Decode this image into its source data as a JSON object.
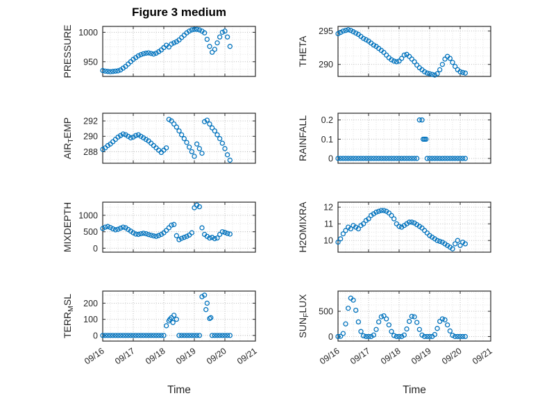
{
  "figure_title": "Figure 3 medium",
  "chart_data": {
    "type": "scatter",
    "title": "Figure 3 medium",
    "xlabel": "Time",
    "marker": "o",
    "marker_color": "#0072BD",
    "axis_color": "#262626",
    "grid_color": "#b0b0b0",
    "minor_grid_color": "#d9d9d9",
    "grid": "on",
    "minor_grid": "on",
    "x_unit": "days_since_09/16",
    "xlim_days": [
      0,
      5
    ],
    "xticks": [
      0,
      1,
      2,
      3,
      4,
      5
    ],
    "xtick_labels": [
      "09/16",
      "09/17",
      "09/18",
      "09/19",
      "09/20",
      "09/21"
    ],
    "xminor_step": 0.25,
    "x_days": [
      0,
      0.083,
      0.167,
      0.25,
      0.333,
      0.417,
      0.5,
      0.583,
      0.667,
      0.75,
      0.833,
      0.917,
      1,
      1.083,
      1.167,
      1.25,
      1.333,
      1.417,
      1.5,
      1.583,
      1.667,
      1.75,
      1.833,
      1.917,
      2,
      2.083,
      2.167,
      2.25,
      2.333,
      2.417,
      2.5,
      2.583,
      2.667,
      2.75,
      2.833,
      2.917,
      3,
      3.083,
      3.167,
      3.25,
      3.333,
      3.417,
      3.5,
      3.583,
      3.667,
      3.75,
      3.833,
      3.917,
      4,
      4.083,
      4.167
    ],
    "subplots": [
      {
        "name": "pressure",
        "label": "PRESSURE",
        "ylabel_parts": [
          {
            "t": "PRESSURE"
          }
        ],
        "yticks": [
          950,
          1000
        ],
        "ytick_labels": [
          "950",
          "1000"
        ],
        "ylim": [
          925,
          1010
        ],
        "yminor": [
          937.5,
          962.5,
          975,
          987.5
        ],
        "y": [
          935,
          934,
          933.5,
          933,
          933.5,
          934,
          934.5,
          936,
          939,
          942,
          946,
          950,
          954,
          957,
          960,
          962,
          963.5,
          964.5,
          965,
          964,
          963,
          964.5,
          967,
          970,
          974,
          978,
          975,
          980,
          982,
          984,
          987,
          991,
          995,
          999,
          1002,
          1004,
          1005,
          1005,
          1004,
          1002,
          999,
          988,
          976,
          966,
          971,
          982,
          992,
          1000,
          1002,
          992,
          976
        ]
      },
      {
        "name": "theta",
        "label": "THETA",
        "ylabel_parts": [
          {
            "t": "THETA"
          }
        ],
        "yticks": [
          290,
          295
        ],
        "ytick_labels": [
          "290",
          "295"
        ],
        "ylim": [
          288.2,
          295.7
        ],
        "yminor": [
          288.75,
          291.25,
          292.5,
          293.75
        ],
        "y": [
          294.6,
          294.8,
          295,
          295.1,
          295.2,
          295.1,
          294.9,
          294.7,
          294.5,
          294.2,
          293.9,
          293.7,
          293.5,
          293.2,
          292.9,
          292.7,
          292.4,
          292.1,
          291.8,
          291.4,
          291,
          290.7,
          290.5,
          290.4,
          290.5,
          290.9,
          291.4,
          291.5,
          291.2,
          290.8,
          290.4,
          289.9,
          289.5,
          289.2,
          288.9,
          288.7,
          288.6,
          288.5,
          288.4,
          288.6,
          289.2,
          290,
          290.8,
          291.2,
          290.9,
          290.3,
          289.7,
          289.2,
          288.9,
          288.8,
          288.7
        ]
      },
      {
        "name": "air_temp",
        "label": "AIR_TEMP",
        "ylabel_parts": [
          {
            "t": "AIR"
          },
          {
            "t": "T",
            "sub": true
          },
          {
            "t": "EMP"
          }
        ],
        "yticks": [
          288,
          290,
          292
        ],
        "ytick_labels": [
          "288",
          "290",
          "292"
        ],
        "ylim": [
          286.5,
          293
        ],
        "yminor": [
          287,
          289,
          291
        ],
        "y": [
          288.3,
          288.5,
          288.8,
          289,
          289.3,
          289.6,
          289.9,
          290.1,
          290.3,
          290.2,
          290,
          289.8,
          289.9,
          290.1,
          290.2,
          290,
          289.8,
          289.6,
          289.4,
          289.1,
          288.8,
          288.5,
          288.2,
          287.9,
          288.2,
          288.5,
          292.2,
          292,
          291.6,
          291.2,
          290.7,
          290.2,
          289.7,
          289.2,
          288.6,
          288,
          287.4,
          289,
          288.4,
          287.8,
          291.9,
          292.1,
          291.6,
          291.1,
          290.7,
          290.2,
          289.7,
          289.1,
          288.4,
          287.6,
          286.9
        ]
      },
      {
        "name": "rainfall",
        "label": "RAINFALL",
        "ylabel_parts": [
          {
            "t": "RAINFALL"
          }
        ],
        "yticks": [
          0,
          0.1,
          0.2
        ],
        "ytick_labels": [
          "0",
          "0.1",
          "0.2"
        ],
        "ylim": [
          -0.025,
          0.235
        ],
        "yminor": [
          0.05,
          0.15
        ],
        "y": [
          0,
          0,
          0,
          0,
          0,
          0,
          0,
          0,
          0,
          0,
          0,
          0,
          0,
          0,
          0,
          0,
          0,
          0,
          0,
          0,
          0,
          0,
          0,
          0,
          0,
          0,
          0,
          0,
          0,
          0,
          0,
          0,
          0.2,
          0.2,
          0.1,
          0,
          0,
          0,
          0,
          0,
          0,
          0,
          0,
          0,
          0,
          0,
          0,
          0,
          0,
          0,
          0
        ],
        "extra_points": [
          [
            2.79,
            0.1
          ],
          [
            2.88,
            0.1
          ]
        ]
      },
      {
        "name": "mixdepth",
        "label": "MIXDEPTH",
        "ylabel_parts": [
          {
            "t": "MIXDEPTH"
          }
        ],
        "yticks": [
          0,
          500,
          1000
        ],
        "ytick_labels": [
          "0",
          "500",
          "1000"
        ],
        "ylim": [
          -120,
          1400
        ],
        "yminor": [
          250,
          750,
          1250
        ],
        "y": [
          600,
          640,
          660,
          630,
          590,
          560,
          575,
          610,
          640,
          620,
          570,
          520,
          470,
          430,
          420,
          440,
          455,
          440,
          415,
          395,
          375,
          360,
          385,
          420,
          470,
          540,
          620,
          700,
          720,
          380,
          260,
          300,
          330,
          360,
          400,
          470,
          1230,
          1310,
          1260,
          620,
          420,
          360,
          310,
          330,
          290,
          310,
          420,
          500,
          480,
          450,
          430
        ]
      },
      {
        "name": "h2omixra",
        "label": "H2OMIXRA",
        "ylabel_parts": [
          {
            "t": "H2OMIXRA"
          }
        ],
        "yticks": [
          10,
          11,
          12
        ],
        "ytick_labels": [
          "10",
          "11",
          "12"
        ],
        "ylim": [
          9.3,
          12.3
        ],
        "yminor": [
          9.5,
          9.75,
          10.25,
          10.5,
          10.75,
          11.25,
          11.5,
          11.75,
          12.25
        ],
        "y": [
          9.9,
          10.1,
          10.4,
          10.6,
          10.8,
          10.7,
          10.9,
          10.8,
          10.7,
          10.9,
          11,
          11.2,
          11.3,
          11.5,
          11.6,
          11.7,
          11.75,
          11.8,
          11.8,
          11.75,
          11.65,
          11.5,
          11.3,
          11,
          10.85,
          10.8,
          10.9,
          11,
          11.1,
          11.1,
          11.05,
          10.95,
          10.85,
          10.75,
          10.6,
          10.45,
          10.3,
          10.2,
          10.1,
          10,
          9.95,
          9.9,
          9.8,
          9.7,
          9.6,
          9.5,
          9.8,
          10,
          9.7,
          9.9,
          9.8
        ]
      },
      {
        "name": "terr_msl",
        "label": "TERR_MSL",
        "ylabel_parts": [
          {
            "t": "TERR"
          },
          {
            "t": "M",
            "sub": true
          },
          {
            "t": "SL"
          }
        ],
        "yticks": [
          0,
          100,
          200
        ],
        "ytick_labels": [
          "0",
          "100",
          "200"
        ],
        "ylim": [
          -35,
          275
        ],
        "yminor": [
          50,
          150,
          250
        ],
        "y": [
          0,
          0,
          0,
          0,
          0,
          0,
          0,
          0,
          0,
          0,
          0,
          0,
          0,
          0,
          0,
          0,
          0,
          0,
          0,
          0,
          0,
          0,
          0,
          0,
          0,
          60,
          90,
          110,
          125,
          100,
          0,
          0,
          0,
          0,
          0,
          0,
          0,
          0,
          0,
          240,
          250,
          200,
          105,
          0,
          0,
          0,
          0,
          0,
          0,
          0,
          0
        ],
        "extra_points": [
          [
            2.2,
            100
          ],
          [
            2.3,
            80
          ],
          [
            3.38,
            160
          ],
          [
            3.54,
            110
          ]
        ]
      },
      {
        "name": "sun_flux",
        "label": "SUN_FLUX",
        "ylabel_parts": [
          {
            "t": "SUN"
          },
          {
            "t": "F",
            "sub": true
          },
          {
            "t": "LUX"
          }
        ],
        "yticks": [
          0,
          500
        ],
        "ytick_labels": [
          "0",
          "500"
        ],
        "ylim": [
          -90,
          900
        ],
        "yminor": [
          125,
          250,
          375,
          625,
          750,
          875
        ],
        "y": [
          0,
          5,
          60,
          250,
          560,
          760,
          720,
          520,
          290,
          100,
          15,
          0,
          0,
          0,
          30,
          140,
          290,
          390,
          410,
          350,
          230,
          100,
          20,
          0,
          0,
          0,
          30,
          150,
          300,
          400,
          390,
          280,
          140,
          30,
          0,
          0,
          0,
          0,
          40,
          160,
          300,
          350,
          330,
          230,
          110,
          25,
          0,
          0,
          0,
          0,
          0
        ]
      }
    ]
  }
}
